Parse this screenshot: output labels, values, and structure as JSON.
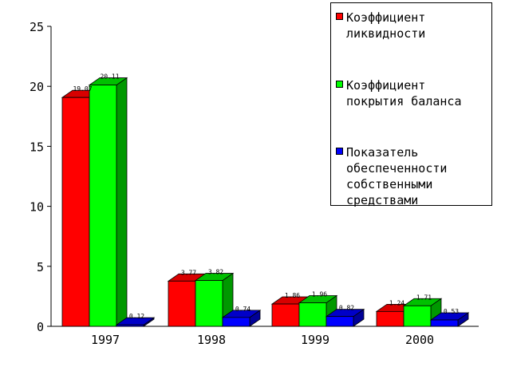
{
  "chart_data": {
    "type": "bar",
    "categories": [
      "1997",
      "1998",
      "1999",
      "2000"
    ],
    "series": [
      {
        "name": "Коэффициент\nликвидности",
        "values": [
          19.07,
          3.77,
          1.86,
          1.24
        ],
        "color": "#ff0000",
        "side_color": "#c00000",
        "top_color": "#d80000"
      },
      {
        "name": "Коэффициент\nпокрытия баланса",
        "values": [
          20.11,
          3.82,
          1.96,
          1.71
        ],
        "color": "#00ff00",
        "side_color": "#009800",
        "top_color": "#00c000"
      },
      {
        "name": "Показатель\nобеспеченности\nсобственными\nсредствами",
        "values": [
          0.12,
          0.74,
          0.82,
          0.53
        ],
        "color": "#0000ff",
        "side_color": "#000098",
        "top_color": "#0000c8"
      }
    ],
    "value_labels": [
      [
        "19.07",
        "3.77",
        "1.86",
        "1.24"
      ],
      [
        "20.11",
        "3.82",
        "1.96",
        "1.71"
      ],
      [
        "0.12",
        "0.74",
        "0.82",
        "0.53"
      ]
    ],
    "y_ticks": [
      "0",
      "5",
      "10",
      "15",
      "20",
      "25"
    ],
    "ylim": [
      0,
      25
    ],
    "title": "",
    "xlabel": "",
    "ylabel": "",
    "grid": false,
    "legend_position": "top-right"
  }
}
